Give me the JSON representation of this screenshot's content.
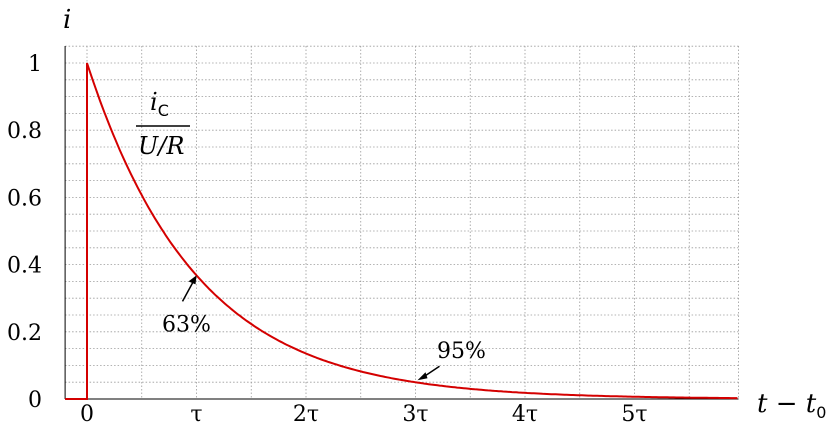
{
  "chart_data": {
    "type": "line",
    "title": "",
    "ylabel": "i",
    "xlabel": {
      "main": "t − t",
      "sub": "0"
    },
    "curve_label": {
      "numerator": "i",
      "numerator_sub": "C",
      "denominator": "U/R"
    },
    "x_ticks": [
      "0",
      "τ",
      "2τ",
      "3τ",
      "4τ",
      "5τ"
    ],
    "x_tick_values": [
      0,
      1,
      2,
      3,
      4,
      5
    ],
    "y_ticks": [
      "0",
      "0.2",
      "0.4",
      "0.6",
      "0.8",
      "1"
    ],
    "y_tick_values": [
      0,
      0.2,
      0.4,
      0.6,
      0.8,
      1.0
    ],
    "xlim": [
      -0.2,
      5.95
    ],
    "ylim": [
      0,
      1
    ],
    "grid": true,
    "series": [
      {
        "color": "#d40000",
        "x": [
          -0.2,
          0,
          0,
          0.25,
          0.5,
          0.75,
          1,
          1.25,
          1.5,
          1.75,
          2,
          2.5,
          3,
          3.5,
          4,
          4.5,
          5,
          5.5,
          5.95
        ],
        "y": [
          0,
          0,
          1,
          0.779,
          0.607,
          0.472,
          0.368,
          0.287,
          0.223,
          0.174,
          0.135,
          0.082,
          0.05,
          0.03,
          0.018,
          0.011,
          0.007,
          0.004,
          0.003
        ]
      }
    ],
    "annotations": [
      {
        "text": "63%",
        "x": 1,
        "y": 0.368
      },
      {
        "text": "95%",
        "x": 3,
        "y": 0.05
      }
    ]
  }
}
